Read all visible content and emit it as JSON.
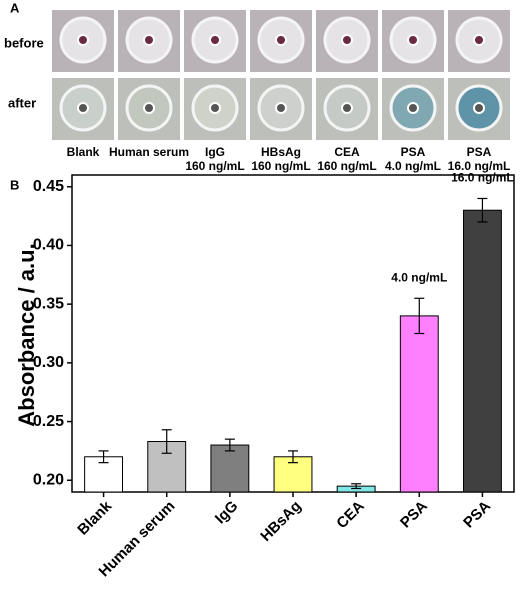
{
  "panel_a": {
    "label": "A",
    "rows": [
      "before",
      "after"
    ],
    "columns": [
      {
        "name": "Blank"
      },
      {
        "name": "Human serum"
      },
      {
        "name": "IgG",
        "conc": "160 ng/mL"
      },
      {
        "name": "HBsAg",
        "conc": "160 ng/mL"
      },
      {
        "name": "CEA",
        "conc": "160 ng/mL"
      },
      {
        "name": "PSA",
        "conc": "4.0 ng/mL"
      },
      {
        "name": "PSA",
        "conc": "16.0 ng/mL"
      }
    ]
  },
  "chart_data": {
    "type": "bar",
    "panel_label": "B",
    "y_label": "Absorbance / a.u.",
    "categories": [
      "Blank",
      "Human serum",
      "IgG",
      "HBsAg",
      "CEA",
      "PSA",
      "PSA"
    ],
    "values": [
      0.22,
      0.233,
      0.23,
      0.22,
      0.195,
      0.34,
      0.43
    ],
    "errors": [
      0.005,
      0.01,
      0.005,
      0.005,
      0.002,
      0.015,
      0.01
    ],
    "colors": [
      "#ffffff",
      "#c0c0c0",
      "#7f7f7f",
      "#ffff80",
      "#80e6e6",
      "#ff80ff",
      "#404040"
    ],
    "annotations": [
      {
        "index": 5,
        "text": "4.0 ng/mL"
      },
      {
        "index": 6,
        "text": "16.0 ng/mL"
      }
    ],
    "ylim": [
      0.19,
      0.46
    ],
    "yticks": [
      {
        "value": 0.2,
        "label": "0.20"
      },
      0.25,
      {
        "value": 0.3,
        "label": "0.30"
      },
      0.35,
      {
        "value": 0.4,
        "label": "0.40"
      },
      0.45
    ]
  }
}
